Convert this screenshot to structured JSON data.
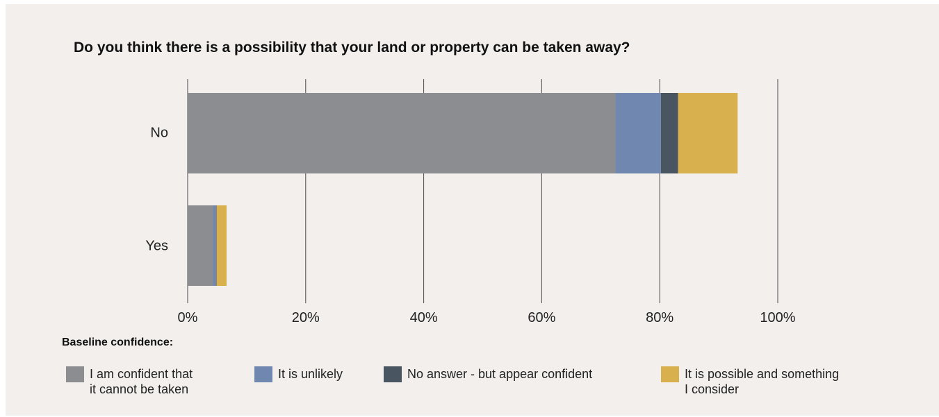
{
  "chart_data": {
    "type": "bar",
    "orientation": "horizontal",
    "stacked": true,
    "title": "Do you think there is a possibility that your land or property can be taken away?",
    "categories": [
      "No",
      "Yes"
    ],
    "series": [
      {
        "name": "I am confident that\nit cannot be taken",
        "color": "#8c8d90",
        "values": [
          72.5,
          4.3
        ]
      },
      {
        "name": "It is unlikely",
        "color": "#7088b0",
        "values": [
          7.7,
          0.5
        ]
      },
      {
        "name": "No answer - but appear confident",
        "color": "#4a5562",
        "values": [
          2.9,
          0.1
        ]
      },
      {
        "name": "It is possible and something\nI consider",
        "color": "#d9b04e",
        "values": [
          10.1,
          1.7
        ]
      }
    ],
    "xlim": [
      0,
      100
    ],
    "xticks": [
      0,
      20,
      40,
      60,
      80,
      100
    ],
    "xtick_labels": [
      "0%",
      "20%",
      "40%",
      "60%",
      "80%",
      "100%"
    ],
    "grid": true,
    "legend_title": "Baseline confidence:",
    "legend_position": "bottom"
  }
}
